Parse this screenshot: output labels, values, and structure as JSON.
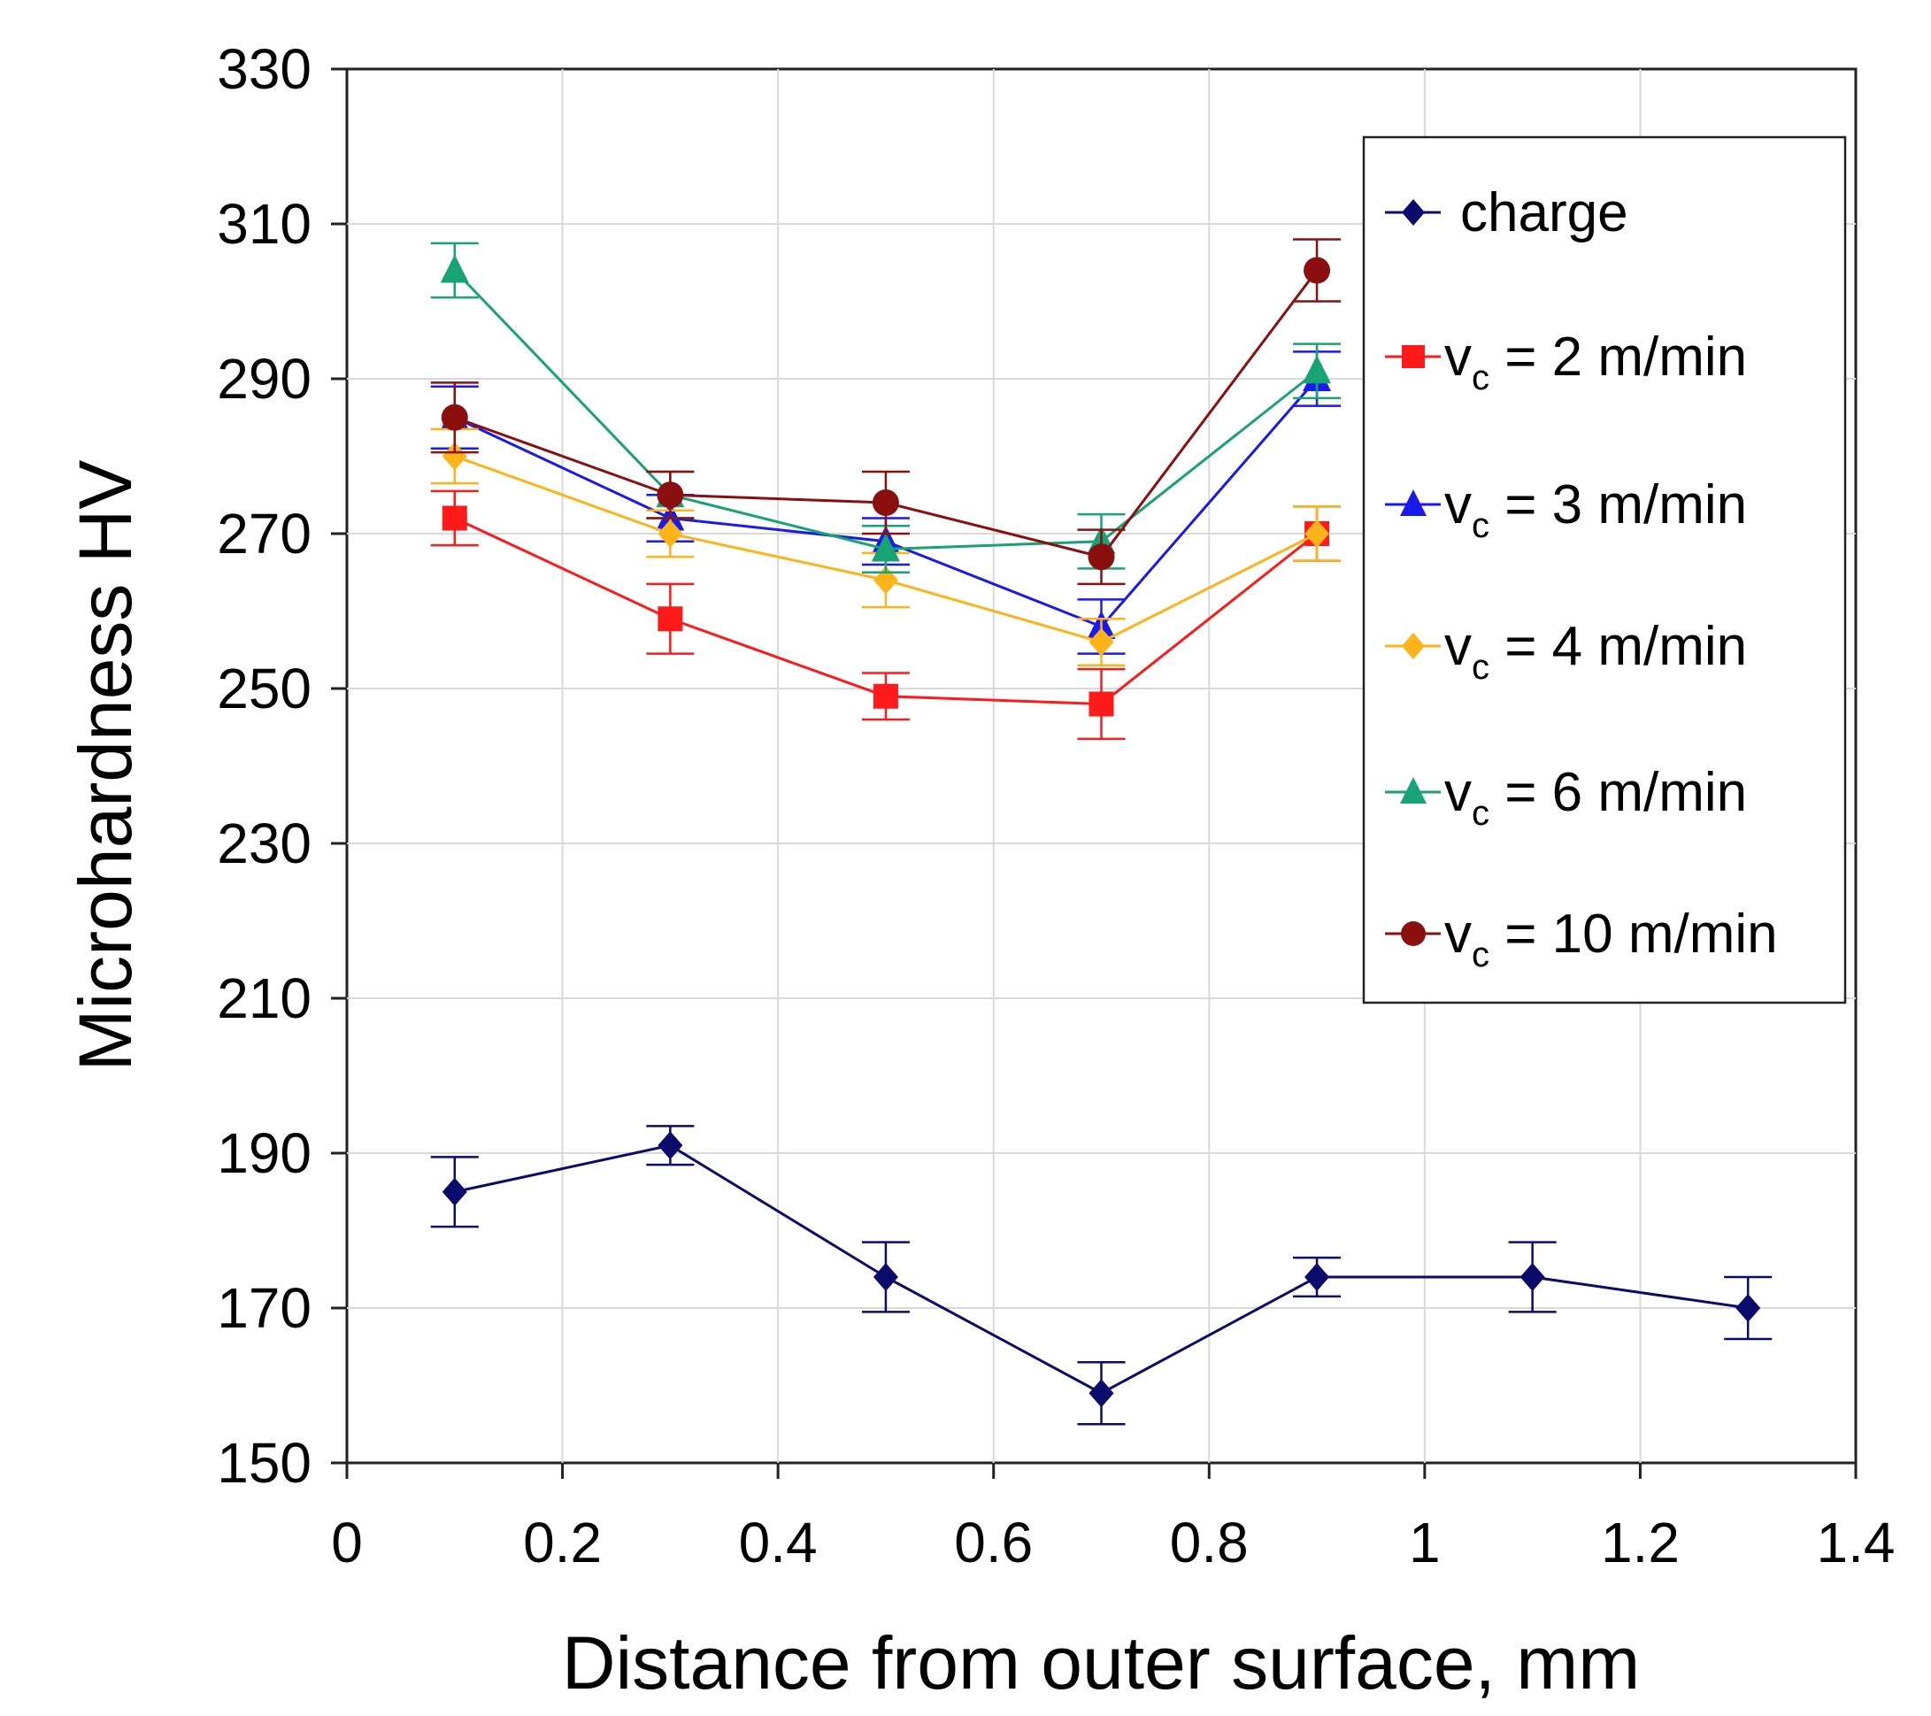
{
  "chart_data": {
    "type": "line",
    "title": "",
    "xlabel": "Distance from outer surface, mm",
    "ylabel": "Microhardness HV",
    "xlim": [
      0,
      1.4
    ],
    "ylim": [
      150,
      330
    ],
    "xticks": [
      0,
      0.2,
      0.4,
      0.6,
      0.8,
      1,
      1.2,
      1.4
    ],
    "yticks": [
      150,
      170,
      190,
      210,
      230,
      250,
      270,
      290,
      310,
      330
    ],
    "xtick_labels": [
      "0",
      "0.2",
      "0.4",
      "0.6",
      "0.8",
      "1",
      "1.2",
      "1.4"
    ],
    "ytick_labels": [
      "150",
      "170",
      "190",
      "210",
      "230",
      "250",
      "270",
      "290",
      "310",
      "330"
    ],
    "grid": true,
    "legend_position": "top-right",
    "series": [
      {
        "name": "charge",
        "label_prefix": "",
        "label_sub": "",
        "label_rest": "charge",
        "color": "#0b0b6e",
        "marker": "diamond",
        "x": [
          0.1,
          0.3,
          0.5,
          0.7,
          0.9,
          1.1,
          1.3
        ],
        "values": [
          185,
          191,
          174,
          159,
          174,
          174,
          170
        ],
        "errors": [
          4.5,
          2.5,
          4.5,
          4,
          2.5,
          4.5,
          4
        ]
      },
      {
        "name": "vc = 2 m/min",
        "label_prefix": "v",
        "label_sub": "c",
        "label_rest": " = 2 m/min",
        "color": "#ff1a1a",
        "marker": "square",
        "x": [
          0.1,
          0.3,
          0.5,
          0.7,
          0.9
        ],
        "values": [
          272,
          259,
          249,
          248,
          270
        ],
        "errors": [
          3.5,
          4.5,
          3,
          4.5,
          3.5
        ]
      },
      {
        "name": "vc = 3 m/min",
        "label_prefix": "v",
        "label_sub": "c",
        "label_rest": " = 3 m/min",
        "color": "#1a1aee",
        "marker": "triangle",
        "x": [
          0.1,
          0.3,
          0.5,
          0.7,
          0.9
        ],
        "values": [
          285,
          272,
          269,
          258,
          290
        ],
        "errors": [
          4,
          3,
          3,
          3.5,
          3.5
        ]
      },
      {
        "name": "vc = 4 m/min",
        "label_prefix": "v",
        "label_sub": "c",
        "label_rest": " = 4 m/min",
        "color": "#ffb31a",
        "marker": "diamond",
        "x": [
          0.1,
          0.3,
          0.5,
          0.7,
          0.9
        ],
        "values": [
          280,
          270,
          264,
          256,
          270
        ],
        "errors": [
          3.5,
          3,
          3.5,
          3,
          3.5
        ]
      },
      {
        "name": "vc = 6 m/min",
        "label_prefix": "v",
        "label_sub": "c",
        "label_rest": " = 6 m/min",
        "color": "#17a373",
        "marker": "triangle",
        "x": [
          0.1,
          0.3,
          0.5,
          0.7,
          0.9
        ],
        "values": [
          304,
          275,
          268,
          269,
          291
        ],
        "errors": [
          3.5,
          3,
          3,
          3.5,
          3.5
        ]
      },
      {
        "name": "vc = 10 m/min",
        "label_prefix": "v",
        "label_sub": "c",
        "label_rest": " = 10 m/min",
        "color": "#8b0f0f",
        "marker": "circle",
        "x": [
          0.1,
          0.3,
          0.5,
          0.7,
          0.9
        ],
        "values": [
          285,
          275,
          274,
          267,
          304
        ],
        "errors": [
          4.5,
          3,
          4,
          3.5,
          4
        ]
      }
    ]
  }
}
